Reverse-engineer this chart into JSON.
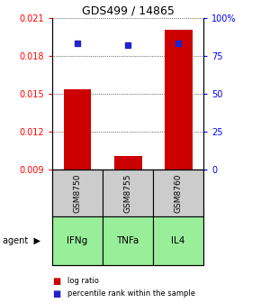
{
  "title": "GDS499 / 14865",
  "samples": [
    "GSM8750",
    "GSM8755",
    "GSM8760"
  ],
  "agents": [
    "IFNg",
    "TNFa",
    "IL4"
  ],
  "log_ratio": [
    0.01535,
    0.01005,
    0.02005
  ],
  "percentile_rank": [
    83.5,
    82.0,
    83.5
  ],
  "ylim_left": [
    0.009,
    0.021
  ],
  "ylim_right": [
    0,
    100
  ],
  "yticks_left": [
    0.009,
    0.012,
    0.015,
    0.018,
    0.021
  ],
  "yticks_right": [
    0,
    25,
    50,
    75,
    100
  ],
  "bar_color": "#cc0000",
  "dot_color": "#2222cc",
  "agent_bg": "#99ee99",
  "sample_bg": "#cccccc",
  "bar_width": 0.55,
  "title_fontsize": 9,
  "tick_fontsize": 7,
  "label_fontsize": 7.5
}
